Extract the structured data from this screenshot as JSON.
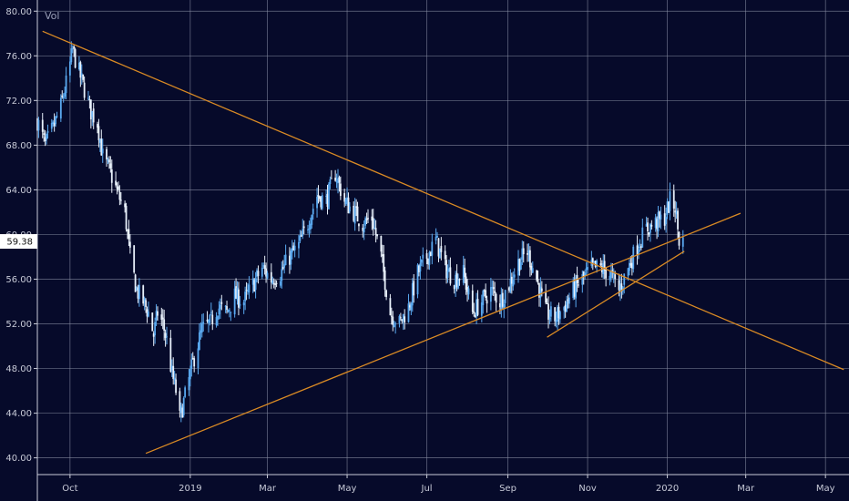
{
  "chart_data": {
    "type": "candlestick",
    "indicator_label": "Vol",
    "ylim": [
      38.5,
      81
    ],
    "y_ticks": [
      40,
      44,
      48,
      52,
      56,
      60,
      64,
      68,
      72,
      76,
      80
    ],
    "y_tick_labels": [
      "40.00",
      "44.00",
      "48.00",
      "52.00",
      "56.00",
      "60.00",
      "64.00",
      "68.00",
      "72.00",
      "76.00",
      "80.00"
    ],
    "x_ticks": [
      {
        "label": "Oct",
        "date": "2018-10-01"
      },
      {
        "label": "2019",
        "date": "2019-01-01"
      },
      {
        "label": "Mar",
        "date": "2019-03-01"
      },
      {
        "label": "May",
        "date": "2019-05-01"
      },
      {
        "label": "Jul",
        "date": "2019-07-01"
      },
      {
        "label": "Sep",
        "date": "2019-09-01"
      },
      {
        "label": "Nov",
        "date": "2019-11-01"
      },
      {
        "label": "2020",
        "date": "2020-01-01"
      },
      {
        "label": "Mar",
        "date": "2020-03-01"
      },
      {
        "label": "May",
        "date": "2020-05-01"
      }
    ],
    "xlim": [
      "2018-09-06",
      "2020-05-19"
    ],
    "last_price": 59.38,
    "last_price_label": "59.38",
    "series_color": "#5aa9f0",
    "trendline_color": "#d98a24",
    "grid": true,
    "close_path": [
      [
        "2018-09-06",
        70.2
      ],
      [
        "2018-09-12",
        68.0
      ],
      [
        "2018-09-18",
        69.5
      ],
      [
        "2018-09-24",
        71.5
      ],
      [
        "2018-09-29",
        74.0
      ],
      [
        "2018-10-03",
        76.5
      ],
      [
        "2018-10-08",
        74.5
      ],
      [
        "2018-10-12",
        73.0
      ],
      [
        "2018-10-17",
        71.0
      ],
      [
        "2018-10-22",
        70.0
      ],
      [
        "2018-10-26",
        67.0
      ],
      [
        "2018-11-01",
        65.5
      ],
      [
        "2018-11-07",
        63.5
      ],
      [
        "2018-11-12",
        62.0
      ],
      [
        "2018-11-16",
        58.0
      ],
      [
        "2018-11-21",
        55.0
      ],
      [
        "2018-11-26",
        54.0
      ],
      [
        "2018-11-30",
        53.0
      ],
      [
        "2018-12-04",
        51.0
      ],
      [
        "2018-12-07",
        53.0
      ],
      [
        "2018-12-11",
        52.0
      ],
      [
        "2018-12-14",
        50.5
      ],
      [
        "2018-12-18",
        47.5
      ],
      [
        "2018-12-21",
        46.0
      ],
      [
        "2018-12-24",
        43.5
      ],
      [
        "2018-12-28",
        45.5
      ],
      [
        "2019-01-04",
        49.0
      ],
      [
        "2019-01-10",
        51.5
      ],
      [
        "2019-01-16",
        52.0
      ],
      [
        "2019-01-22",
        53.5
      ],
      [
        "2019-01-29",
        53.0
      ],
      [
        "2019-02-04",
        54.5
      ],
      [
        "2019-02-11",
        54.0
      ],
      [
        "2019-02-18",
        55.5
      ],
      [
        "2019-02-25",
        57.0
      ],
      [
        "2019-03-04",
        56.0
      ],
      [
        "2019-03-11",
        56.5
      ],
      [
        "2019-03-18",
        58.0
      ],
      [
        "2019-03-25",
        59.0
      ],
      [
        "2019-04-01",
        61.0
      ],
      [
        "2019-04-08",
        63.5
      ],
      [
        "2019-04-15",
        63.0
      ],
      [
        "2019-04-22",
        65.5
      ],
      [
        "2019-04-29",
        63.0
      ],
      [
        "2019-05-06",
        62.0
      ],
      [
        "2019-05-13",
        61.0
      ],
      [
        "2019-05-20",
        61.5
      ],
      [
        "2019-05-27",
        58.0
      ],
      [
        "2019-06-03",
        53.0
      ],
      [
        "2019-06-10",
        52.0
      ],
      [
        "2019-06-17",
        53.5
      ],
      [
        "2019-06-24",
        56.5
      ],
      [
        "2019-07-01",
        58.0
      ],
      [
        "2019-07-08",
        59.5
      ],
      [
        "2019-07-15",
        57.0
      ],
      [
        "2019-07-22",
        56.0
      ],
      [
        "2019-07-29",
        56.5
      ],
      [
        "2019-08-05",
        53.0
      ],
      [
        "2019-08-12",
        54.0
      ],
      [
        "2019-08-19",
        55.0
      ],
      [
        "2019-08-26",
        54.0
      ],
      [
        "2019-09-02",
        55.5
      ],
      [
        "2019-09-09",
        57.5
      ],
      [
        "2019-09-16",
        58.5
      ],
      [
        "2019-09-23",
        56.0
      ],
      [
        "2019-09-30",
        53.0
      ],
      [
        "2019-10-07",
        52.5
      ],
      [
        "2019-10-14",
        53.5
      ],
      [
        "2019-10-21",
        55.0
      ],
      [
        "2019-10-28",
        56.0
      ],
      [
        "2019-11-04",
        57.0
      ],
      [
        "2019-11-11",
        57.0
      ],
      [
        "2019-11-18",
        56.5
      ],
      [
        "2019-11-25",
        55.0
      ],
      [
        "2019-12-02",
        57.0
      ],
      [
        "2019-12-09",
        59.0
      ],
      [
        "2019-12-16",
        60.5
      ],
      [
        "2019-12-23",
        61.0
      ],
      [
        "2019-12-30",
        61.5
      ],
      [
        "2020-01-03",
        63.0
      ],
      [
        "2020-01-07",
        62.5
      ],
      [
        "2020-01-10",
        59.5
      ],
      [
        "2020-01-14",
        59.38
      ]
    ],
    "trendlines": [
      {
        "name": "upper",
        "from": [
          "2018-09-10",
          78.2
        ],
        "to": [
          "2020-05-15",
          47.9
        ]
      },
      {
        "name": "lower",
        "from": [
          "2018-11-28",
          40.4
        ],
        "to": [
          "2020-02-26",
          61.9
        ]
      },
      {
        "name": "short-support",
        "from": [
          "2019-10-01",
          50.8
        ],
        "to": [
          "2020-01-14",
          58.5
        ]
      }
    ]
  }
}
